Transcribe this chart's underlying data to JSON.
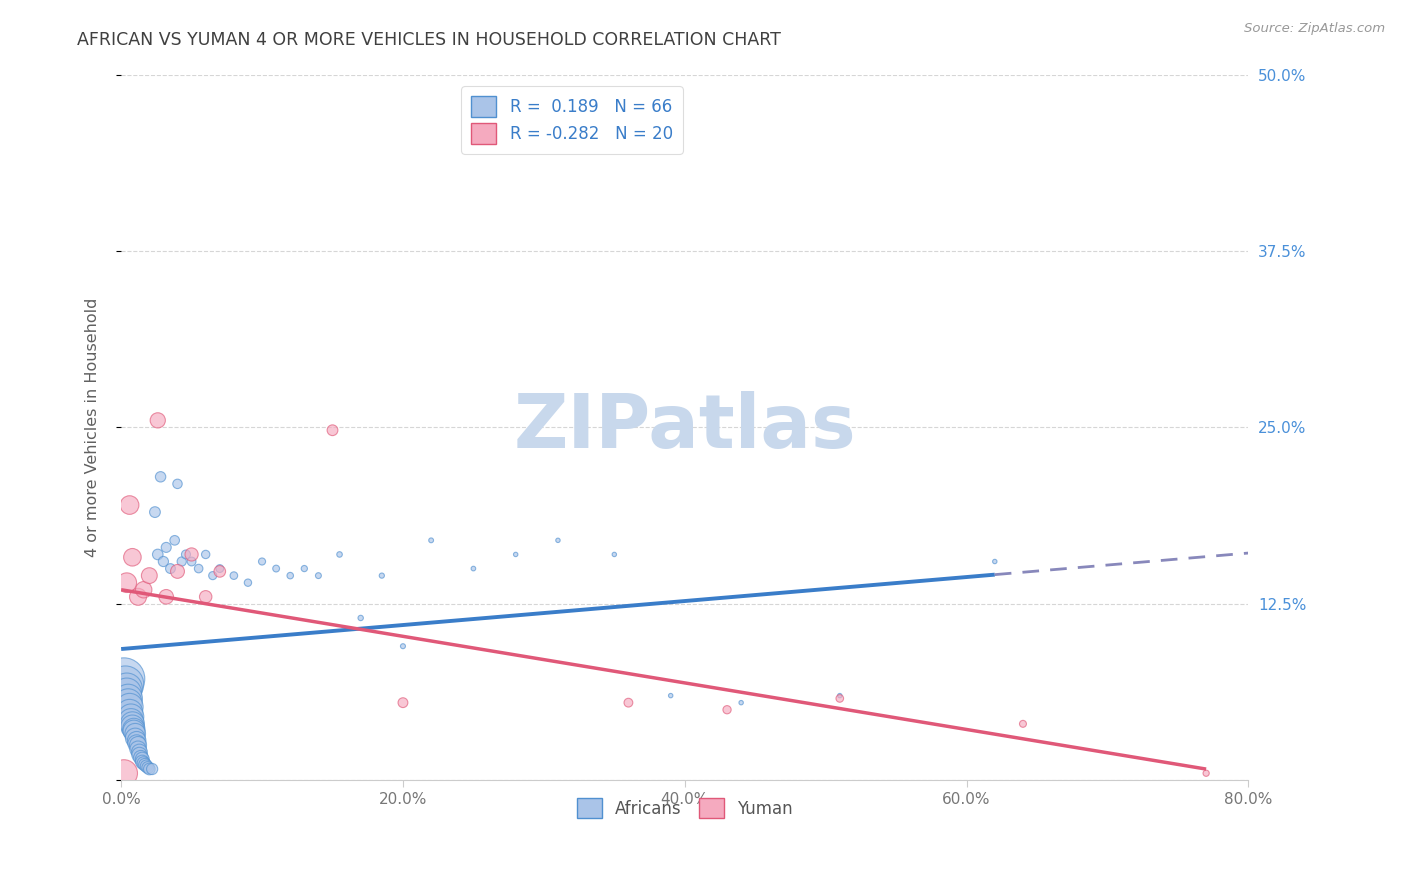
{
  "title": "AFRICAN VS YUMAN 4 OR MORE VEHICLES IN HOUSEHOLD CORRELATION CHART",
  "source": "Source: ZipAtlas.com",
  "ylabel": "4 or more Vehicles in Household",
  "xlim": [
    0.0,
    0.8
  ],
  "ylim": [
    0.0,
    0.5
  ],
  "xticks": [
    0.0,
    0.2,
    0.4,
    0.6,
    0.8
  ],
  "yticks": [
    0.0,
    0.125,
    0.25,
    0.375,
    0.5
  ],
  "xticklabels": [
    "0.0%",
    "20.0%",
    "40.0%",
    "60.0%",
    "80.0%"
  ],
  "right_yticklabels": [
    "50.0%",
    "37.5%",
    "25.0%",
    "12.5%",
    ""
  ],
  "africans_R": 0.189,
  "africans_N": 66,
  "yuman_R": -0.282,
  "yuman_N": 20,
  "africans_color": "#aac4e8",
  "yuman_color": "#f5aabf",
  "africans_edge_color": "#5090d0",
  "yuman_edge_color": "#e05878",
  "africans_line_color": "#3a7dc9",
  "yuman_line_color": "#e05878",
  "background_color": "#ffffff",
  "grid_color": "#cccccc",
  "title_color": "#404040",
  "axis_label_color": "#606060",
  "right_tick_color": "#4a90d9",
  "watermark_color": "#c8d8ec",
  "legend_text_color": "#3a7dc9",
  "africans_x": [
    0.002,
    0.003,
    0.004,
    0.004,
    0.005,
    0.005,
    0.006,
    0.006,
    0.007,
    0.007,
    0.008,
    0.008,
    0.009,
    0.009,
    0.01,
    0.01,
    0.011,
    0.011,
    0.012,
    0.012,
    0.013,
    0.013,
    0.014,
    0.015,
    0.015,
    0.016,
    0.017,
    0.018,
    0.019,
    0.02,
    0.022,
    0.024,
    0.026,
    0.028,
    0.03,
    0.032,
    0.035,
    0.038,
    0.04,
    0.043,
    0.046,
    0.05,
    0.055,
    0.06,
    0.065,
    0.07,
    0.08,
    0.09,
    0.1,
    0.11,
    0.12,
    0.13,
    0.14,
    0.155,
    0.17,
    0.185,
    0.2,
    0.22,
    0.25,
    0.28,
    0.31,
    0.35,
    0.39,
    0.44,
    0.51,
    0.62
  ],
  "africans_y": [
    0.072,
    0.068,
    0.065,
    0.062,
    0.058,
    0.055,
    0.052,
    0.048,
    0.045,
    0.042,
    0.04,
    0.038,
    0.036,
    0.035,
    0.033,
    0.03,
    0.028,
    0.026,
    0.025,
    0.022,
    0.02,
    0.018,
    0.016,
    0.015,
    0.013,
    0.012,
    0.011,
    0.01,
    0.009,
    0.008,
    0.008,
    0.19,
    0.16,
    0.215,
    0.155,
    0.165,
    0.15,
    0.17,
    0.21,
    0.155,
    0.16,
    0.155,
    0.15,
    0.16,
    0.145,
    0.15,
    0.145,
    0.14,
    0.155,
    0.15,
    0.145,
    0.15,
    0.145,
    0.16,
    0.115,
    0.145,
    0.095,
    0.17,
    0.15,
    0.16,
    0.17,
    0.16,
    0.06,
    0.055,
    0.06,
    0.155
  ],
  "africans_sizes": [
    900,
    700,
    500,
    450,
    420,
    400,
    380,
    360,
    340,
    320,
    300,
    280,
    260,
    240,
    220,
    200,
    180,
    160,
    150,
    140,
    130,
    120,
    110,
    100,
    95,
    90,
    85,
    80,
    75,
    70,
    65,
    60,
    58,
    56,
    54,
    52,
    50,
    48,
    46,
    44,
    42,
    40,
    38,
    36,
    34,
    32,
    30,
    28,
    26,
    24,
    22,
    20,
    18,
    16,
    15,
    14,
    13,
    12,
    11,
    10,
    10,
    10,
    10,
    10,
    10,
    10
  ],
  "yuman_x": [
    0.002,
    0.004,
    0.006,
    0.008,
    0.012,
    0.016,
    0.02,
    0.026,
    0.032,
    0.04,
    0.05,
    0.06,
    0.07,
    0.15,
    0.2,
    0.36,
    0.43,
    0.51,
    0.64,
    0.77
  ],
  "yuman_y": [
    0.005,
    0.14,
    0.195,
    0.158,
    0.13,
    0.135,
    0.145,
    0.255,
    0.13,
    0.148,
    0.16,
    0.13,
    0.148,
    0.248,
    0.055,
    0.055,
    0.05,
    0.058,
    0.04,
    0.005
  ],
  "yuman_sizes": [
    380,
    200,
    180,
    160,
    150,
    140,
    130,
    120,
    110,
    100,
    90,
    80,
    70,
    60,
    50,
    40,
    35,
    30,
    25,
    20
  ],
  "af_trend_x0": 0.0,
  "af_trend_x_solid_end": 0.62,
  "af_trend_x_dashed_end": 0.8,
  "af_trend_y0": 0.093,
  "af_trend_slope": 0.085,
  "yu_trend_x0": 0.0,
  "yu_trend_x_end": 0.77,
  "yu_trend_y0": 0.135,
  "yu_trend_slope": -0.165
}
